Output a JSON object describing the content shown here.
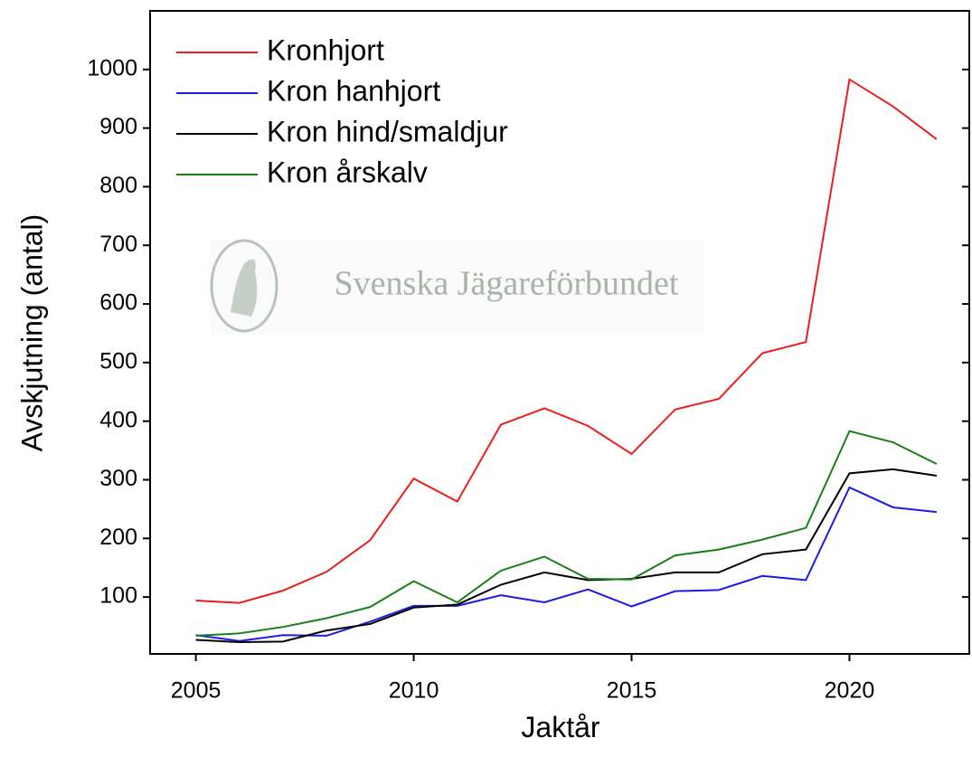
{
  "chart_data": {
    "type": "line",
    "x_label": "Jaktår",
    "y_label": "Avskjutning (antal)",
    "watermark": "Svenska Jägareförbundet",
    "x": [
      2005,
      2006,
      2007,
      2008,
      2009,
      2010,
      2011,
      2012,
      2013,
      2014,
      2015,
      2016,
      2017,
      2018,
      2019,
      2020,
      2021,
      2022
    ],
    "series": [
      {
        "name": "Kronhjort",
        "color": "#ee1c1c",
        "values": [
          94,
          90,
          111,
          143,
          197,
          302,
          263,
          394,
          422,
          392,
          344,
          420,
          438,
          516,
          535,
          983,
          937,
          881
        ]
      },
      {
        "name": "Kron hanhjort",
        "color": "#1c1ce6",
        "values": [
          35,
          25,
          35,
          34,
          58,
          85,
          85,
          103,
          91,
          113,
          84,
          110,
          112,
          136,
          129,
          287,
          253,
          245
        ]
      },
      {
        "name": "Kron hind/smaldjur",
        "color": "#000000",
        "values": [
          27,
          23,
          24,
          43,
          54,
          82,
          87,
          121,
          142,
          129,
          131,
          142,
          142,
          173,
          181,
          311,
          318,
          307
        ]
      },
      {
        "name": "Kron årskalv",
        "color": "#168016",
        "values": [
          34,
          38,
          49,
          64,
          83,
          127,
          91,
          145,
          169,
          131,
          130,
          171,
          181,
          198,
          218,
          383,
          364,
          327
        ]
      }
    ],
    "xlim": [
      2003.95,
      2022.75
    ],
    "xticks": [
      2005,
      2010,
      2015,
      2020
    ],
    "ylim": [
      3,
      1100
    ],
    "yticks": [
      100,
      200,
      300,
      400,
      500,
      600,
      700,
      800,
      900,
      1000
    ],
    "legend": "upper left"
  }
}
